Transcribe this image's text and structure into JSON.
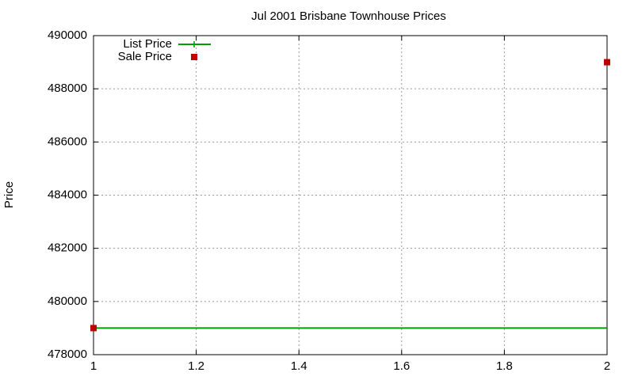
{
  "chart_data": {
    "type": "line",
    "title": "Jul 2001 Brisbane Townhouse Prices",
    "y_label": "Price",
    "x": [
      1,
      2
    ],
    "series": [
      {
        "name": "List Price",
        "color": "#009e00",
        "style": "lines",
        "values": [
          479000,
          479000
        ]
      },
      {
        "name": "Sale Price",
        "color": "#c00000",
        "style": "points",
        "values": [
          479000,
          489000
        ]
      }
    ],
    "xlim": [
      1,
      2
    ],
    "xticks": [
      1,
      1.2,
      1.4,
      1.6,
      1.8,
      2
    ],
    "ylim": [
      478000,
      490000
    ],
    "yticks": [
      478000,
      480000,
      482000,
      484000,
      486000,
      488000,
      490000
    ],
    "grid": true,
    "legend": "top-left"
  }
}
